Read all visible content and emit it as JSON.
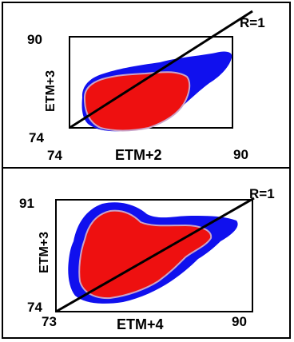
{
  "colors": {
    "outer_density": "#1010ee",
    "inner_density": "#ee1010",
    "density_edge": "#c9a3c8",
    "regression_line": "#000000"
  },
  "chart_data": [
    {
      "type": "scatter",
      "subtype": "2D feature-space density plot",
      "xlabel": "ETM+2",
      "ylabel": "ETM+3",
      "xlim": [
        74,
        90
      ],
      "ylim": [
        74,
        90
      ],
      "x_ticks": [
        "74",
        "90"
      ],
      "y_ticks": [
        "74",
        "90"
      ],
      "line_label": "R=1",
      "series": [
        {
          "type": "line",
          "x": [
            74,
            90
          ],
          "y": [
            74,
            90
          ]
        }
      ]
    },
    {
      "type": "scatter",
      "subtype": "2D feature-space density plot",
      "xlabel": "ETM+4",
      "ylabel": "ETM+3",
      "xlim": [
        73,
        90
      ],
      "ylim": [
        74,
        91
      ],
      "x_ticks": [
        "73",
        "90"
      ],
      "y_ticks": [
        "74",
        "91"
      ],
      "line_label": "R=1",
      "series": [
        {
          "type": "line",
          "x": [
            73,
            90
          ],
          "y": [
            74,
            91
          ]
        }
      ]
    }
  ]
}
